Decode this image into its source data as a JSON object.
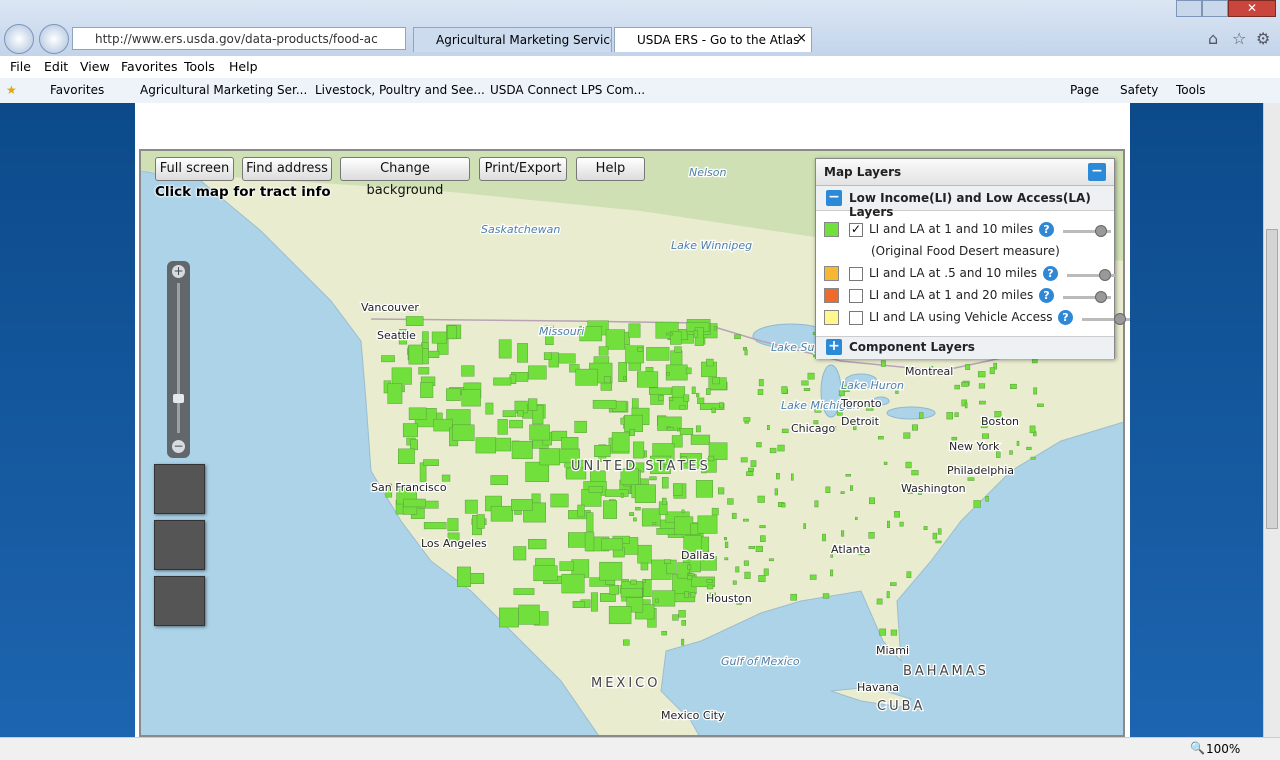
{
  "browser": {
    "url": "http://www.ers.usda.gov/data-products/food-ac",
    "tabs": [
      "Agricultural Marketing Service ...",
      "USDA ERS - Go to the Atlas"
    ],
    "menu": [
      "File",
      "Edit",
      "View",
      "Favorites",
      "Tools",
      "Help"
    ],
    "favorites_label": "Favorites",
    "favorites": [
      "Agricultural Marketing Ser...",
      "Livestock, Poultry and See...",
      "USDA Connect LPS Com..."
    ],
    "commands": [
      "Page",
      "Safety",
      "Tools"
    ],
    "zoom": "100%"
  },
  "map": {
    "buttons": [
      "Full screen",
      "Find address",
      "Change background",
      "Print/Export",
      "Help"
    ],
    "hint": "Click map for tract info",
    "places": [
      "Vancouver",
      "Seattle",
      "San Francisco",
      "Los Angeles",
      "Nelson",
      "Saskatchewan",
      "Lake Winnipeg",
      "Missouri",
      "Lake Superior",
      "Lake Michigan",
      "Lake Huron",
      "Montreal",
      "Toronto",
      "Detroit",
      "Chicago",
      "Boston",
      "New York",
      "Philadelphia",
      "Washington",
      "Atlanta",
      "Dallas",
      "Houston",
      "Miami",
      "Havana",
      "BAHAMAS",
      "CUBA",
      "Gulf of Mexico",
      "MEXICO",
      "UNITED STATES",
      "Mexico City"
    ]
  },
  "layers_panel": {
    "title": "Map Layers",
    "group": "Low Income(LI) and Low Access(LA) Layers",
    "layers": [
      {
        "label": "LI and LA at 1 and 10 miles",
        "note": "(Original Food Desert measure)",
        "color": "#72e03c",
        "checked": true
      },
      {
        "label": "LI and LA at .5 and 10 miles",
        "color": "#f7b733",
        "checked": false
      },
      {
        "label": "LI and LA at 1 and 20 miles",
        "color": "#ee6b2c",
        "checked": false
      },
      {
        "label": "LI and LA using Vehicle Access",
        "color": "#fff68c",
        "checked": false
      }
    ],
    "component_group": "Component Layers"
  }
}
